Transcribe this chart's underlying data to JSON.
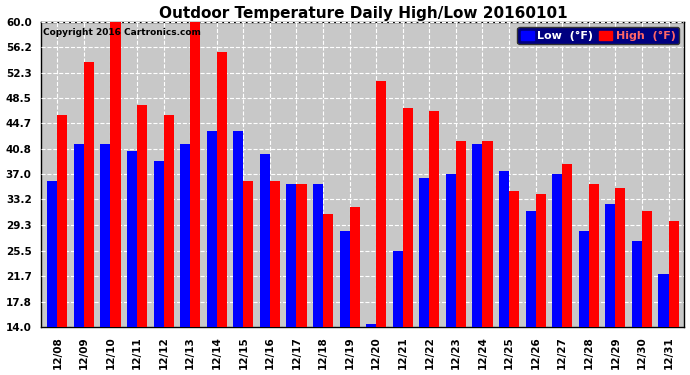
{
  "title": "Outdoor Temperature Daily High/Low 20160101",
  "copyright": "Copyright 2016 Cartronics.com",
  "legend_low": "Low  (°F)",
  "legend_high": "High  (°F)",
  "dates": [
    "12/08",
    "12/09",
    "12/10",
    "12/11",
    "12/12",
    "12/13",
    "12/14",
    "12/15",
    "12/16",
    "12/17",
    "12/18",
    "12/19",
    "12/20",
    "12/21",
    "12/22",
    "12/23",
    "12/24",
    "12/25",
    "12/26",
    "12/27",
    "12/28",
    "12/29",
    "12/30",
    "12/31"
  ],
  "highs": [
    46.0,
    54.0,
    60.0,
    47.5,
    46.0,
    62.0,
    55.5,
    36.0,
    36.0,
    35.5,
    31.0,
    32.0,
    51.0,
    47.0,
    46.5,
    42.0,
    42.0,
    34.5,
    34.0,
    38.5,
    35.5,
    35.0,
    31.5,
    30.0
  ],
  "lows": [
    36.0,
    41.5,
    41.5,
    40.5,
    39.0,
    41.5,
    43.5,
    43.5,
    40.0,
    35.5,
    35.5,
    28.5,
    14.5,
    25.5,
    36.5,
    37.0,
    41.5,
    37.5,
    31.5,
    37.0,
    28.5,
    32.5,
    27.0,
    22.0
  ],
  "ymin": 14.0,
  "ylim": [
    14.0,
    60.0
  ],
  "ytick_labels": [
    "14.0",
    "17.8",
    "21.7",
    "25.5",
    "29.3",
    "33.2",
    "37.0",
    "40.8",
    "44.7",
    "48.5",
    "52.3",
    "56.2",
    "60.0"
  ],
  "ytick_values": [
    14.0,
    17.8,
    21.7,
    25.5,
    29.3,
    33.2,
    37.0,
    40.8,
    44.7,
    48.5,
    52.3,
    56.2,
    60.0
  ],
  "bar_width": 0.38,
  "high_color": "#ff0000",
  "low_color": "#0000ff",
  "bg_color": "#ffffff",
  "grid_color": "#ffffff",
  "plot_bg_color": "#c8c8c8",
  "title_fontsize": 11,
  "tick_fontsize": 7.5,
  "legend_fontsize": 8
}
